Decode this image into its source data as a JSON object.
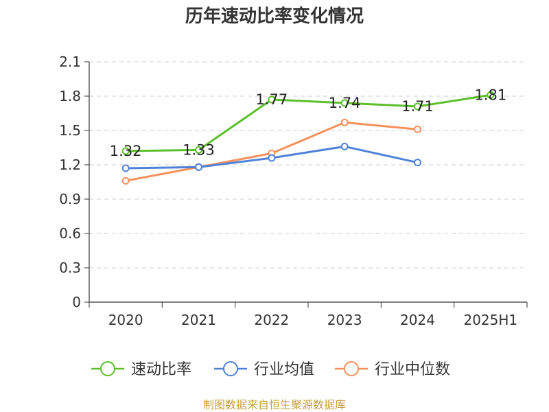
{
  "chart_data": {
    "type": "line",
    "title": "历年速动比率变化情况",
    "categories": [
      "2020",
      "2021",
      "2022",
      "2023",
      "2024",
      "2025H1"
    ],
    "ylim": [
      0,
      2.1
    ],
    "yticks": [
      "0",
      "0.3",
      "0.6",
      "0.9",
      "1.2",
      "1.5",
      "1.8",
      "2.1"
    ],
    "grid": true,
    "legend_position": "bottom",
    "series": [
      {
        "name": "速动比率",
        "color": "#5bbf2a",
        "values": [
          1.32,
          1.33,
          1.77,
          1.74,
          1.71,
          1.81
        ],
        "labels": [
          "1.32",
          "1.33",
          "1.77",
          "1.74",
          "1.71",
          "1.81"
        ]
      },
      {
        "name": "行业均值",
        "color": "#4e82d8",
        "values": [
          1.17,
          1.18,
          1.26,
          1.36,
          1.22,
          null
        ],
        "labels": []
      },
      {
        "name": "行业中位数",
        "color": "#f7905a",
        "values": [
          1.06,
          1.18,
          1.3,
          1.57,
          1.51,
          null
        ],
        "labels": []
      }
    ],
    "source": "制图数据来自恒生聚源数据库"
  }
}
